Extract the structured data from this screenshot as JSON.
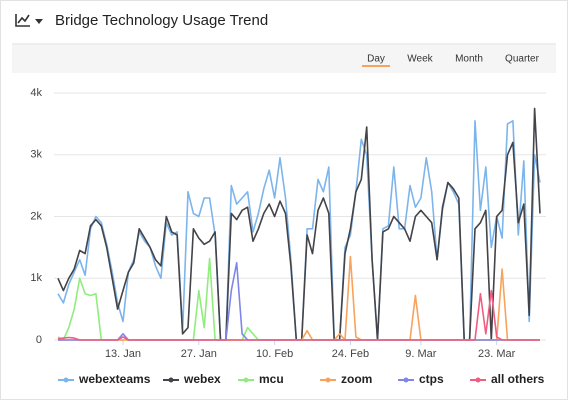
{
  "chart_data": {
    "type": "line",
    "title": "Bridge Technology Usage Trend",
    "tabs": [
      "Day",
      "Week",
      "Month",
      "Quarter"
    ],
    "active_tab": 0,
    "x": [
      1,
      2,
      3,
      4,
      5,
      6,
      7,
      8,
      9,
      10,
      11,
      12,
      13,
      14,
      15,
      16,
      17,
      18,
      19,
      20,
      21,
      22,
      23,
      24,
      25,
      26,
      27,
      28,
      29,
      30,
      31,
      32,
      33,
      34,
      35,
      36,
      37,
      38,
      39,
      40,
      41,
      42,
      43,
      44,
      45,
      46,
      47,
      48,
      49,
      50,
      51,
      52,
      53,
      54,
      55,
      56,
      57,
      58,
      59,
      60,
      61,
      62,
      63,
      64,
      65,
      66,
      67,
      68,
      69,
      70,
      71,
      72,
      73,
      74,
      75,
      76,
      77,
      78,
      79,
      80,
      81,
      82,
      83,
      84,
      85,
      86,
      87,
      88,
      89,
      90
    ],
    "xlim": [
      1,
      90
    ],
    "xticks": [
      {
        "value": 13,
        "label": "13. Jan"
      },
      {
        "value": 27,
        "label": "27. Jan"
      },
      {
        "value": 41,
        "label": "10. Feb"
      },
      {
        "value": 55,
        "label": "24. Feb"
      },
      {
        "value": 68,
        "label": "9. Mar"
      },
      {
        "value": 82,
        "label": "23. Mar"
      }
    ],
    "ylim": [
      0,
      4000
    ],
    "yticks": [
      0,
      {
        "value": 1000,
        "label": "1k"
      },
      {
        "value": 2000,
        "label": "2k"
      },
      {
        "value": 3000,
        "label": "3k"
      },
      {
        "value": 4000,
        "label": "4k"
      }
    ],
    "grid": true,
    "legend": "bottom",
    "series": [
      {
        "name": "webexteams",
        "color": "#7cb5ec",
        "values": [
          750,
          600,
          900,
          1100,
          1300,
          1050,
          1800,
          2000,
          1900,
          1550,
          1100,
          600,
          300,
          1100,
          1300,
          1750,
          1600,
          1500,
          1200,
          1000,
          1900,
          1700,
          1750,
          150,
          2400,
          2050,
          2000,
          2300,
          2300,
          1700,
          0,
          0,
          2500,
          2200,
          2300,
          2400,
          1750,
          2050,
          2450,
          2750,
          2300,
          2950,
          2300,
          1300,
          0,
          0,
          1800,
          1800,
          2600,
          2400,
          2800,
          0,
          0,
          1500,
          1700,
          2400,
          3250,
          3000,
          1300,
          0,
          1800,
          1850,
          2800,
          1800,
          1800,
          2500,
          2150,
          2300,
          2950,
          2400,
          1300,
          2100,
          2550,
          2400,
          2200,
          0,
          0,
          3550,
          2100,
          2800,
          1500,
          2000,
          1650,
          3500,
          3550,
          1700,
          2900,
          300,
          3000,
          2550
        ]
      },
      {
        "name": "webex",
        "color": "#434348",
        "values": [
          1000,
          800,
          1000,
          1150,
          1450,
          1400,
          1850,
          1950,
          1850,
          1500,
          1000,
          500,
          800,
          1100,
          1250,
          1800,
          1650,
          1500,
          1300,
          1200,
          2000,
          1750,
          1700,
          100,
          200,
          1800,
          1650,
          1550,
          1600,
          1750,
          0,
          0,
          2050,
          1950,
          2100,
          2150,
          1600,
          1800,
          2050,
          2200,
          2000,
          2250,
          2050,
          1200,
          0,
          0,
          1700,
          1400,
          2100,
          2300,
          2050,
          0,
          0,
          1400,
          1800,
          2400,
          2600,
          3450,
          1300,
          0,
          1750,
          1800,
          2000,
          1900,
          1800,
          1600,
          2000,
          2100,
          2000,
          1900,
          1300,
          2150,
          2550,
          2450,
          2300,
          0,
          0,
          1800,
          1900,
          2100,
          0,
          2000,
          2100,
          3000,
          3200,
          1900,
          2200,
          400,
          3750,
          2050
        ]
      },
      {
        "name": "mcu",
        "color": "#90ed7d",
        "values": [
          50,
          0,
          200,
          500,
          1000,
          750,
          720,
          750,
          0,
          0,
          0,
          0,
          0,
          0,
          0,
          0,
          0,
          0,
          0,
          0,
          0,
          0,
          0,
          0,
          0,
          0,
          800,
          200,
          1320,
          0,
          0,
          0,
          0,
          0,
          0,
          200,
          100,
          0,
          0,
          0,
          0,
          0,
          0,
          0,
          0,
          0,
          0,
          0,
          0,
          0,
          0,
          0,
          0,
          0,
          0,
          0,
          0,
          0,
          0,
          0,
          0,
          0,
          0,
          0,
          0,
          0,
          0,
          0,
          0,
          0,
          0,
          0,
          0,
          0,
          0,
          0,
          0,
          0,
          0,
          0,
          0,
          0,
          0,
          0,
          0,
          0,
          0,
          0,
          0,
          0
        ]
      },
      {
        "name": "zoom",
        "color": "#f7a35c",
        "values": [
          0,
          0,
          0,
          0,
          0,
          0,
          0,
          0,
          0,
          0,
          0,
          0,
          0,
          0,
          0,
          0,
          0,
          0,
          0,
          0,
          0,
          0,
          0,
          0,
          0,
          0,
          0,
          0,
          0,
          0,
          0,
          0,
          0,
          0,
          0,
          0,
          0,
          0,
          0,
          0,
          0,
          0,
          0,
          0,
          0,
          0,
          150,
          0,
          0,
          0,
          0,
          0,
          100,
          0,
          1350,
          50,
          0,
          0,
          0,
          0,
          0,
          0,
          0,
          0,
          0,
          0,
          720,
          0,
          0,
          0,
          0,
          0,
          0,
          0,
          0,
          0,
          0,
          0,
          0,
          0,
          0,
          0,
          1150,
          0,
          0,
          0,
          0,
          0,
          0,
          0
        ]
      },
      {
        "name": "ctps",
        "color": "#8085e9",
        "values": [
          0,
          0,
          0,
          0,
          0,
          0,
          0,
          0,
          0,
          0,
          0,
          0,
          100,
          0,
          0,
          0,
          0,
          0,
          0,
          0,
          0,
          0,
          0,
          0,
          0,
          0,
          0,
          0,
          0,
          0,
          0,
          0,
          800,
          1250,
          100,
          0,
          0,
          0,
          0,
          0,
          0,
          0,
          0,
          0,
          0,
          0,
          0,
          0,
          0,
          0,
          0,
          0,
          0,
          0,
          0,
          0,
          0,
          0,
          0,
          0,
          0,
          0,
          0,
          0,
          0,
          0,
          0,
          0,
          0,
          0,
          0,
          0,
          0,
          0,
          0,
          0,
          0,
          0,
          0,
          0,
          0,
          0,
          0,
          0,
          0,
          0,
          0,
          0,
          0,
          0
        ]
      },
      {
        "name": "all others",
        "color": "#f15c80",
        "values": [
          20,
          30,
          40,
          30,
          0,
          0,
          0,
          0,
          0,
          0,
          0,
          0,
          50,
          0,
          0,
          0,
          0,
          0,
          0,
          0,
          0,
          0,
          0,
          0,
          0,
          0,
          0,
          0,
          0,
          0,
          0,
          0,
          0,
          0,
          0,
          0,
          0,
          0,
          0,
          0,
          0,
          0,
          0,
          0,
          0,
          0,
          0,
          0,
          0,
          0,
          0,
          0,
          0,
          0,
          0,
          0,
          0,
          0,
          0,
          0,
          0,
          0,
          0,
          0,
          0,
          0,
          0,
          0,
          0,
          0,
          0,
          0,
          0,
          0,
          0,
          0,
          0,
          0,
          750,
          100,
          800,
          50,
          0,
          0,
          0,
          0,
          0,
          0,
          0,
          0
        ]
      }
    ]
  }
}
